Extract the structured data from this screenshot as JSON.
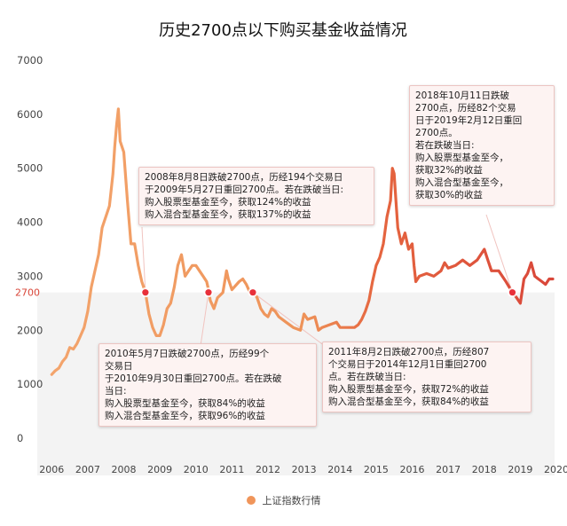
{
  "chart_data": {
    "type": "line",
    "title": "历史2700点以下购买基金收益情况",
    "x_ticks": [
      "2006",
      "2007",
      "2008",
      "2009",
      "2010",
      "2011",
      "2012",
      "2013",
      "2014",
      "2015",
      "2016",
      "2017",
      "2018",
      "2019",
      "2020"
    ],
    "y_ticks": [
      "0",
      "1000",
      "2000",
      "2700",
      "3000",
      "4000",
      "5000",
      "6000",
      "7000"
    ],
    "ylim": [
      0,
      7000
    ],
    "xlim": [
      2005.6,
      2019.95
    ],
    "threshold": 2700,
    "grid": false,
    "shaded_band": [
      0,
      2700
    ],
    "series": [
      {
        "name": "上证指数行情",
        "x": [
          2006.0,
          2006.1,
          2006.2,
          2006.3,
          2006.4,
          2006.5,
          2006.6,
          2006.7,
          2006.8,
          2006.9,
          2007.0,
          2007.1,
          2007.2,
          2007.3,
          2007.4,
          2007.5,
          2007.6,
          2007.7,
          2007.75,
          2007.8,
          2007.85,
          2007.9,
          2008.0,
          2008.1,
          2008.2,
          2008.3,
          2008.4,
          2008.5,
          2008.6,
          2008.7,
          2008.8,
          2008.9,
          2009.0,
          2009.1,
          2009.2,
          2009.3,
          2009.4,
          2009.5,
          2009.6,
          2009.7,
          2009.8,
          2009.9,
          2010.0,
          2010.1,
          2010.2,
          2010.3,
          2010.35,
          2010.4,
          2010.5,
          2010.6,
          2010.75,
          2010.85,
          2010.9,
          2011.0,
          2011.2,
          2011.3,
          2011.4,
          2011.5,
          2011.6,
          2011.7,
          2011.8,
          2011.9,
          2012.0,
          2012.1,
          2012.2,
          2012.3,
          2012.5,
          2012.7,
          2012.9,
          2013.0,
          2013.1,
          2013.3,
          2013.4,
          2013.5,
          2013.7,
          2013.9,
          2014.0,
          2014.2,
          2014.4,
          2014.5,
          2014.6,
          2014.7,
          2014.8,
          2014.9,
          2015.0,
          2015.1,
          2015.2,
          2015.3,
          2015.4,
          2015.45,
          2015.5,
          2015.55,
          2015.6,
          2015.7,
          2015.8,
          2015.9,
          2016.0,
          2016.05,
          2016.1,
          2016.2,
          2016.4,
          2016.6,
          2016.8,
          2016.9,
          2017.0,
          2017.2,
          2017.4,
          2017.6,
          2017.8,
          2018.0,
          2018.1,
          2018.2,
          2018.4,
          2018.6,
          2018.78,
          2018.9,
          2019.0,
          2019.1,
          2019.2,
          2019.3,
          2019.4,
          2019.5,
          2019.6,
          2019.7,
          2019.8,
          2019.9
        ],
        "values": [
          1180,
          1250,
          1300,
          1420,
          1500,
          1680,
          1650,
          1750,
          1900,
          2050,
          2350,
          2800,
          3100,
          3400,
          3900,
          4100,
          4300,
          4900,
          5400,
          5800,
          6100,
          5500,
          5300,
          4400,
          3600,
          3600,
          3200,
          2900,
          2700,
          2300,
          2050,
          1900,
          1900,
          2100,
          2400,
          2500,
          2800,
          3200,
          3400,
          3000,
          3100,
          3200,
          3200,
          3100,
          3000,
          2900,
          2750,
          2550,
          2400,
          2600,
          2700,
          3100,
          2950,
          2750,
          2900,
          2950,
          2850,
          2700,
          2700,
          2600,
          2400,
          2300,
          2250,
          2400,
          2350,
          2250,
          2150,
          2050,
          2000,
          2300,
          2200,
          2250,
          2000,
          2050,
          2100,
          2150,
          2050,
          2050,
          2050,
          2100,
          2200,
          2350,
          2550,
          2900,
          3200,
          3350,
          3600,
          4100,
          4400,
          5000,
          4900,
          4400,
          3900,
          3600,
          3800,
          3500,
          3600,
          3200,
          2900,
          3000,
          3050,
          3000,
          3100,
          3250,
          3150,
          3200,
          3300,
          3200,
          3300,
          3500,
          3300,
          3100,
          3100,
          2900,
          2700,
          2600,
          2500,
          2950,
          3050,
          3250,
          3000,
          2950,
          2900,
          2850,
          2950,
          2950
        ]
      }
    ],
    "markers": [
      {
        "x": 2008.6,
        "y": 2700
      },
      {
        "x": 2010.35,
        "y": 2700
      },
      {
        "x": 2011.58,
        "y": 2700
      },
      {
        "x": 2018.78,
        "y": 2700
      }
    ],
    "annotations": [
      {
        "text": "2008年8月8日跌破2700点，历经194个交易日\n于2009年5月27日重回2700点。若在跌破当日:\n购入股票型基金至今，获取124%的收益\n购入混合型基金至今，获取137%的收益"
      },
      {
        "text": "2010年5月7日跌破2700点，历经99个\n交易日\n于2010年9月30日重回2700点。若在跌破\n当日:\n购入股票型基金至今，获取84%的收益\n购入混合型基金至今，获取96%的收益"
      },
      {
        "text": "2011年8月2日跌破2700点，历经807\n个交易日于2014年12月1日重回2700\n点。若在跌破当日:\n购入股票型基金至今，获取72%的收益\n购入混合型基金至今，获取84%的收益"
      },
      {
        "text": "2018年10月11日跌破\n2700点，历经82个交易\n日于2019年2月12日重回\n2700点。\n若在跌破当日:\n购入股票型基金至今，\n获取32%的收益\n购入混合型基金至今，\n获取30%的收益"
      }
    ]
  },
  "colors": {
    "line_start": "#f3a46c",
    "line_mid": "#ec8a55",
    "line_end": "#d9473a",
    "band": "#f3f3f3",
    "marker": "#e8303a",
    "threshold_label": "#d9473a",
    "callout_bg": "#fdf3f2"
  }
}
